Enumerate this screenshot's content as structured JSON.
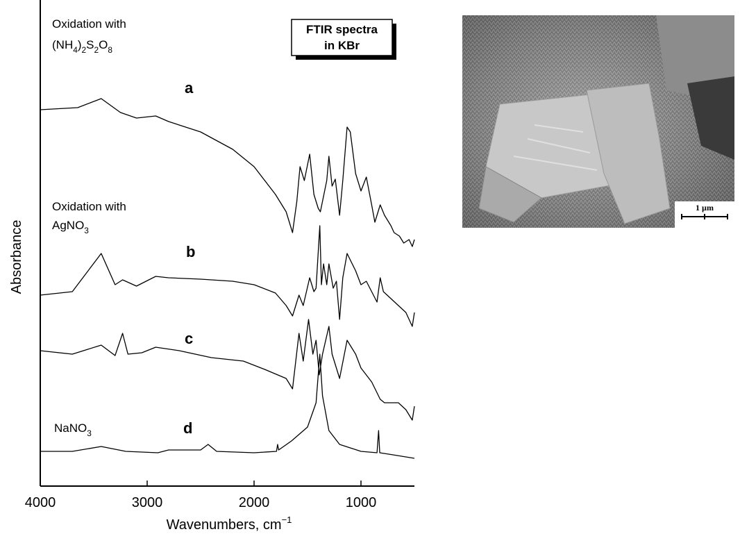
{
  "chart_data": {
    "type": "line",
    "y_label": "Absorbance",
    "x_label": [
      "Wavenumbers, cm",
      "−1"
    ],
    "xlim": [
      4000,
      500
    ],
    "ylim": [
      0,
      7
    ],
    "xticks": [
      4000,
      3000,
      2000,
      1000
    ],
    "legend_box": [
      "FTIR spectra",
      "in KBr"
    ],
    "annotations": [
      [
        "Oxidation with"
      ],
      [
        "(NH",
        "4",
        ")",
        "2",
        "S",
        "2",
        "O",
        "8"
      ],
      [
        "a"
      ],
      [
        "Oxidation with"
      ],
      [
        "AgNO",
        "3"
      ],
      [
        "b"
      ],
      [
        "c"
      ],
      [
        "NaNO",
        "3"
      ],
      [
        "d"
      ]
    ],
    "series": [
      {
        "color": "#000000",
        "x": [
          4000,
          3650,
          3430,
          3250,
          3100,
          2920,
          2800,
          2500,
          2200,
          2000,
          1800,
          1700,
          1640,
          1600,
          1570,
          1530,
          1480,
          1440,
          1400,
          1380,
          1320,
          1300,
          1270,
          1240,
          1200,
          1170,
          1130,
          1100,
          1050,
          1000,
          950,
          900,
          870,
          820,
          780,
          720,
          690,
          640,
          600,
          550,
          520,
          500
        ],
        "values": [
          5.42,
          5.45,
          5.58,
          5.38,
          5.3,
          5.33,
          5.25,
          5.1,
          4.85,
          4.6,
          4.2,
          3.95,
          3.65,
          4.1,
          4.6,
          4.4,
          4.78,
          4.2,
          4.0,
          3.95,
          4.4,
          4.75,
          4.32,
          4.42,
          3.9,
          4.4,
          5.17,
          5.1,
          4.5,
          4.25,
          4.45,
          4.05,
          3.8,
          4.05,
          3.9,
          3.75,
          3.65,
          3.6,
          3.5,
          3.55,
          3.45,
          3.55
        ]
      },
      {
        "color": "#000000",
        "x": [
          4000,
          3700,
          3430,
          3300,
          3230,
          3100,
          2920,
          2800,
          2500,
          2200,
          2000,
          1800,
          1700,
          1640,
          1580,
          1540,
          1480,
          1440,
          1420,
          1385,
          1370,
          1350,
          1320,
          1300,
          1260,
          1230,
          1200,
          1170,
          1130,
          1050,
          1000,
          950,
          900,
          850,
          820,
          790,
          720,
          650,
          580,
          520,
          500
        ],
        "values": [
          2.75,
          2.8,
          3.35,
          2.9,
          2.97,
          2.88,
          3.02,
          3.0,
          2.98,
          2.95,
          2.9,
          2.78,
          2.6,
          2.45,
          2.75,
          2.6,
          3.0,
          2.8,
          2.85,
          3.75,
          2.9,
          3.2,
          2.9,
          3.2,
          2.85,
          2.95,
          2.4,
          3.0,
          3.35,
          3.1,
          2.9,
          2.95,
          2.8,
          2.65,
          3.0,
          2.8,
          2.7,
          2.6,
          2.5,
          2.3,
          2.5
        ]
      },
      {
        "color": "#000000",
        "x": [
          4000,
          3700,
          3430,
          3300,
          3230,
          3180,
          3050,
          2920,
          2700,
          2400,
          2100,
          1900,
          1700,
          1640,
          1580,
          1540,
          1490,
          1450,
          1420,
          1390,
          1360,
          1300,
          1270,
          1200,
          1130,
          1050,
          1000,
          900,
          820,
          780,
          720,
          650,
          580,
          520,
          500
        ],
        "values": [
          1.95,
          1.9,
          2.03,
          1.88,
          2.2,
          1.9,
          1.92,
          2.0,
          1.95,
          1.85,
          1.8,
          1.68,
          1.55,
          1.4,
          2.2,
          1.8,
          2.4,
          1.9,
          2.1,
          1.6,
          1.9,
          2.3,
          1.9,
          1.55,
          2.1,
          1.9,
          1.7,
          1.5,
          1.25,
          1.2,
          1.2,
          1.2,
          1.1,
          0.95,
          1.15
        ]
      },
      {
        "color": "#000000",
        "x": [
          4000,
          3700,
          3430,
          3200,
          2900,
          2800,
          2500,
          2430,
          2350,
          2000,
          1790,
          1780,
          1770,
          1650,
          1500,
          1420,
          1385,
          1360,
          1300,
          1200,
          1000,
          850,
          835,
          825,
          700,
          500
        ],
        "values": [
          0.5,
          0.5,
          0.57,
          0.5,
          0.48,
          0.52,
          0.52,
          0.6,
          0.5,
          0.48,
          0.5,
          0.6,
          0.52,
          0.65,
          0.85,
          1.2,
          1.9,
          1.3,
          0.8,
          0.6,
          0.5,
          0.48,
          0.8,
          0.48,
          0.45,
          0.4
        ]
      }
    ]
  },
  "image": {
    "scale_bar": "1 µm"
  }
}
